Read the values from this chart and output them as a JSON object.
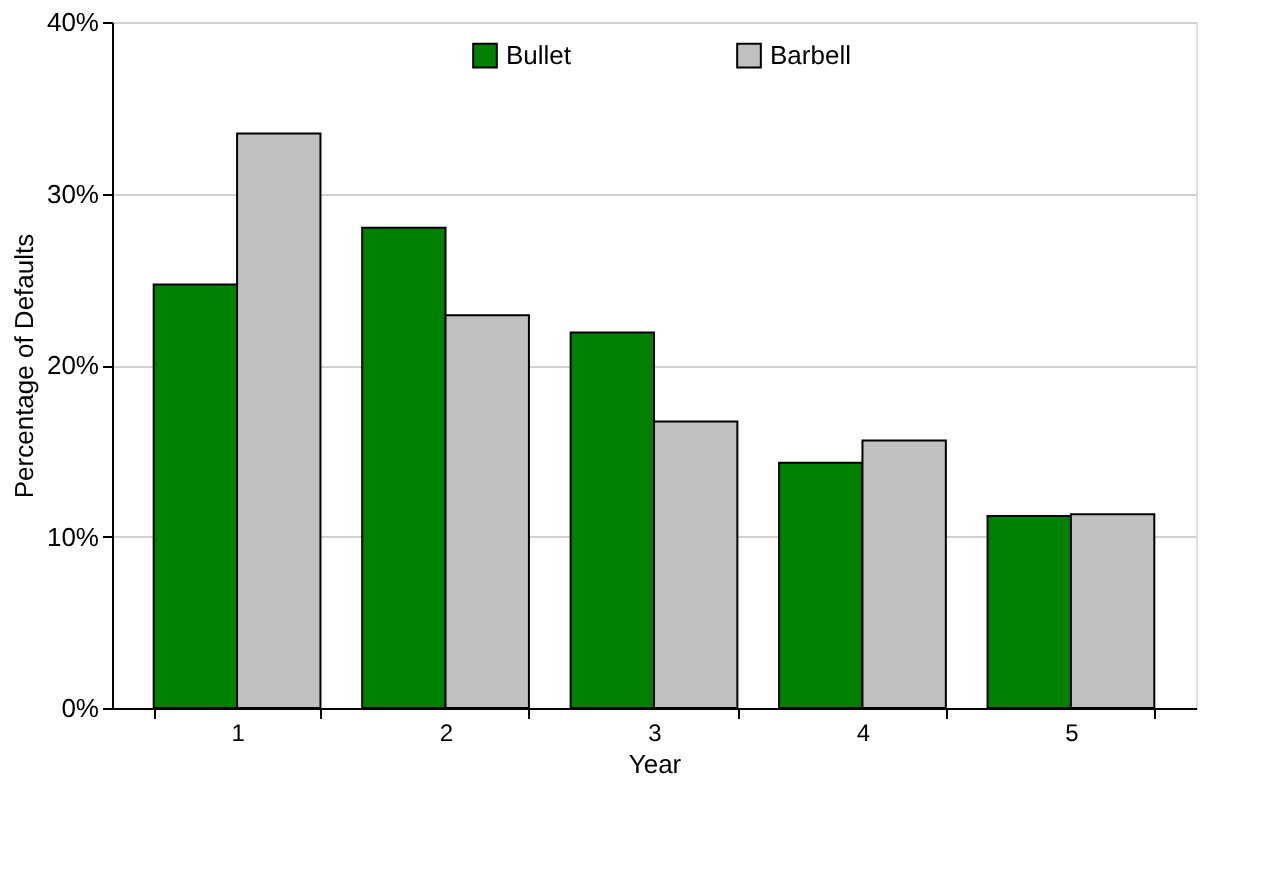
{
  "chart_data": {
    "type": "bar",
    "xlabel": "Year",
    "ylabel": "Percentage of Defaults",
    "categories": [
      "1",
      "2",
      "3",
      "4",
      "5"
    ],
    "series": [
      {
        "name": "Bullet",
        "color": "#008000",
        "values": [
          24.7,
          28.0,
          21.9,
          14.3,
          11.2
        ]
      },
      {
        "name": "Barbell",
        "color": "#c0c0c0",
        "values": [
          33.5,
          22.9,
          16.7,
          15.6,
          11.3
        ]
      }
    ],
    "ylim": [
      0,
      40
    ],
    "yticks": [
      {
        "value": 0,
        "label": "0%"
      },
      {
        "value": 10,
        "label": "10%"
      },
      {
        "value": 20,
        "label": "20%"
      },
      {
        "value": 30,
        "label": "30%"
      },
      {
        "value": 40,
        "label": "40%"
      }
    ],
    "grid": "y",
    "legend": "top"
  }
}
